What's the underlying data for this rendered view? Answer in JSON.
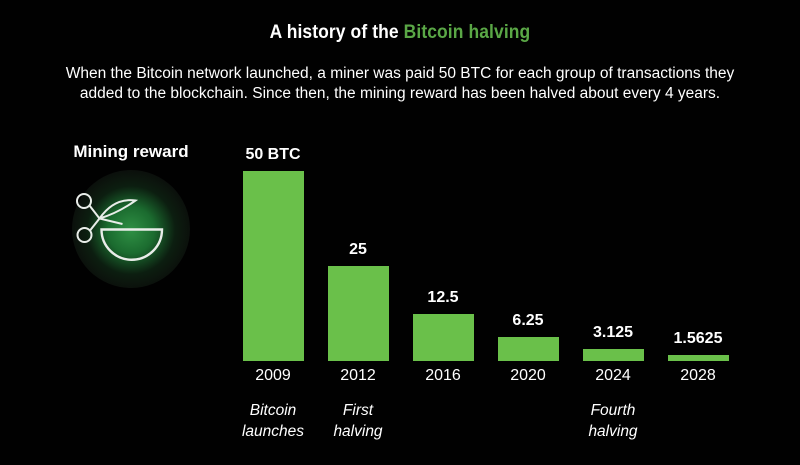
{
  "title": {
    "prefix": "A history of the ",
    "highlight": "Bitcoin halving"
  },
  "subtitle": {
    "line1": "When the Bitcoin network launched, a miner was paid 50 BTC for each group of transactions they",
    "line2": "added to the blockchain. Since then, the mining reward has been halved about every 4 years."
  },
  "legend": {
    "label": "Mining reward",
    "icon": "scissors-cutting-coin-icon"
  },
  "colors": {
    "background": "#010101",
    "bar": "#6ac04a",
    "title_highlight": "#5aa746",
    "text": "#ffffff"
  },
  "chart_data": {
    "type": "bar",
    "title": "A history of the Bitcoin halving",
    "categories": [
      "2009",
      "2012",
      "2016",
      "2020",
      "2024",
      "2028"
    ],
    "values": [
      50,
      25,
      12.5,
      6.25,
      3.125,
      1.5625
    ],
    "value_labels": [
      "50 BTC",
      "25",
      "12.5",
      "6.25",
      "3.125",
      "1.5625"
    ],
    "xlabel": "",
    "ylabel": "",
    "ylim": [
      0,
      50
    ],
    "grid": false,
    "legend_position": "left",
    "annotations": [
      {
        "category": "2009",
        "lines": [
          "Bitcoin",
          "launches"
        ]
      },
      {
        "category": "2012",
        "lines": [
          "First",
          "halving"
        ]
      },
      {
        "category": "2024",
        "lines": [
          "Fourth",
          "halving"
        ]
      }
    ]
  }
}
